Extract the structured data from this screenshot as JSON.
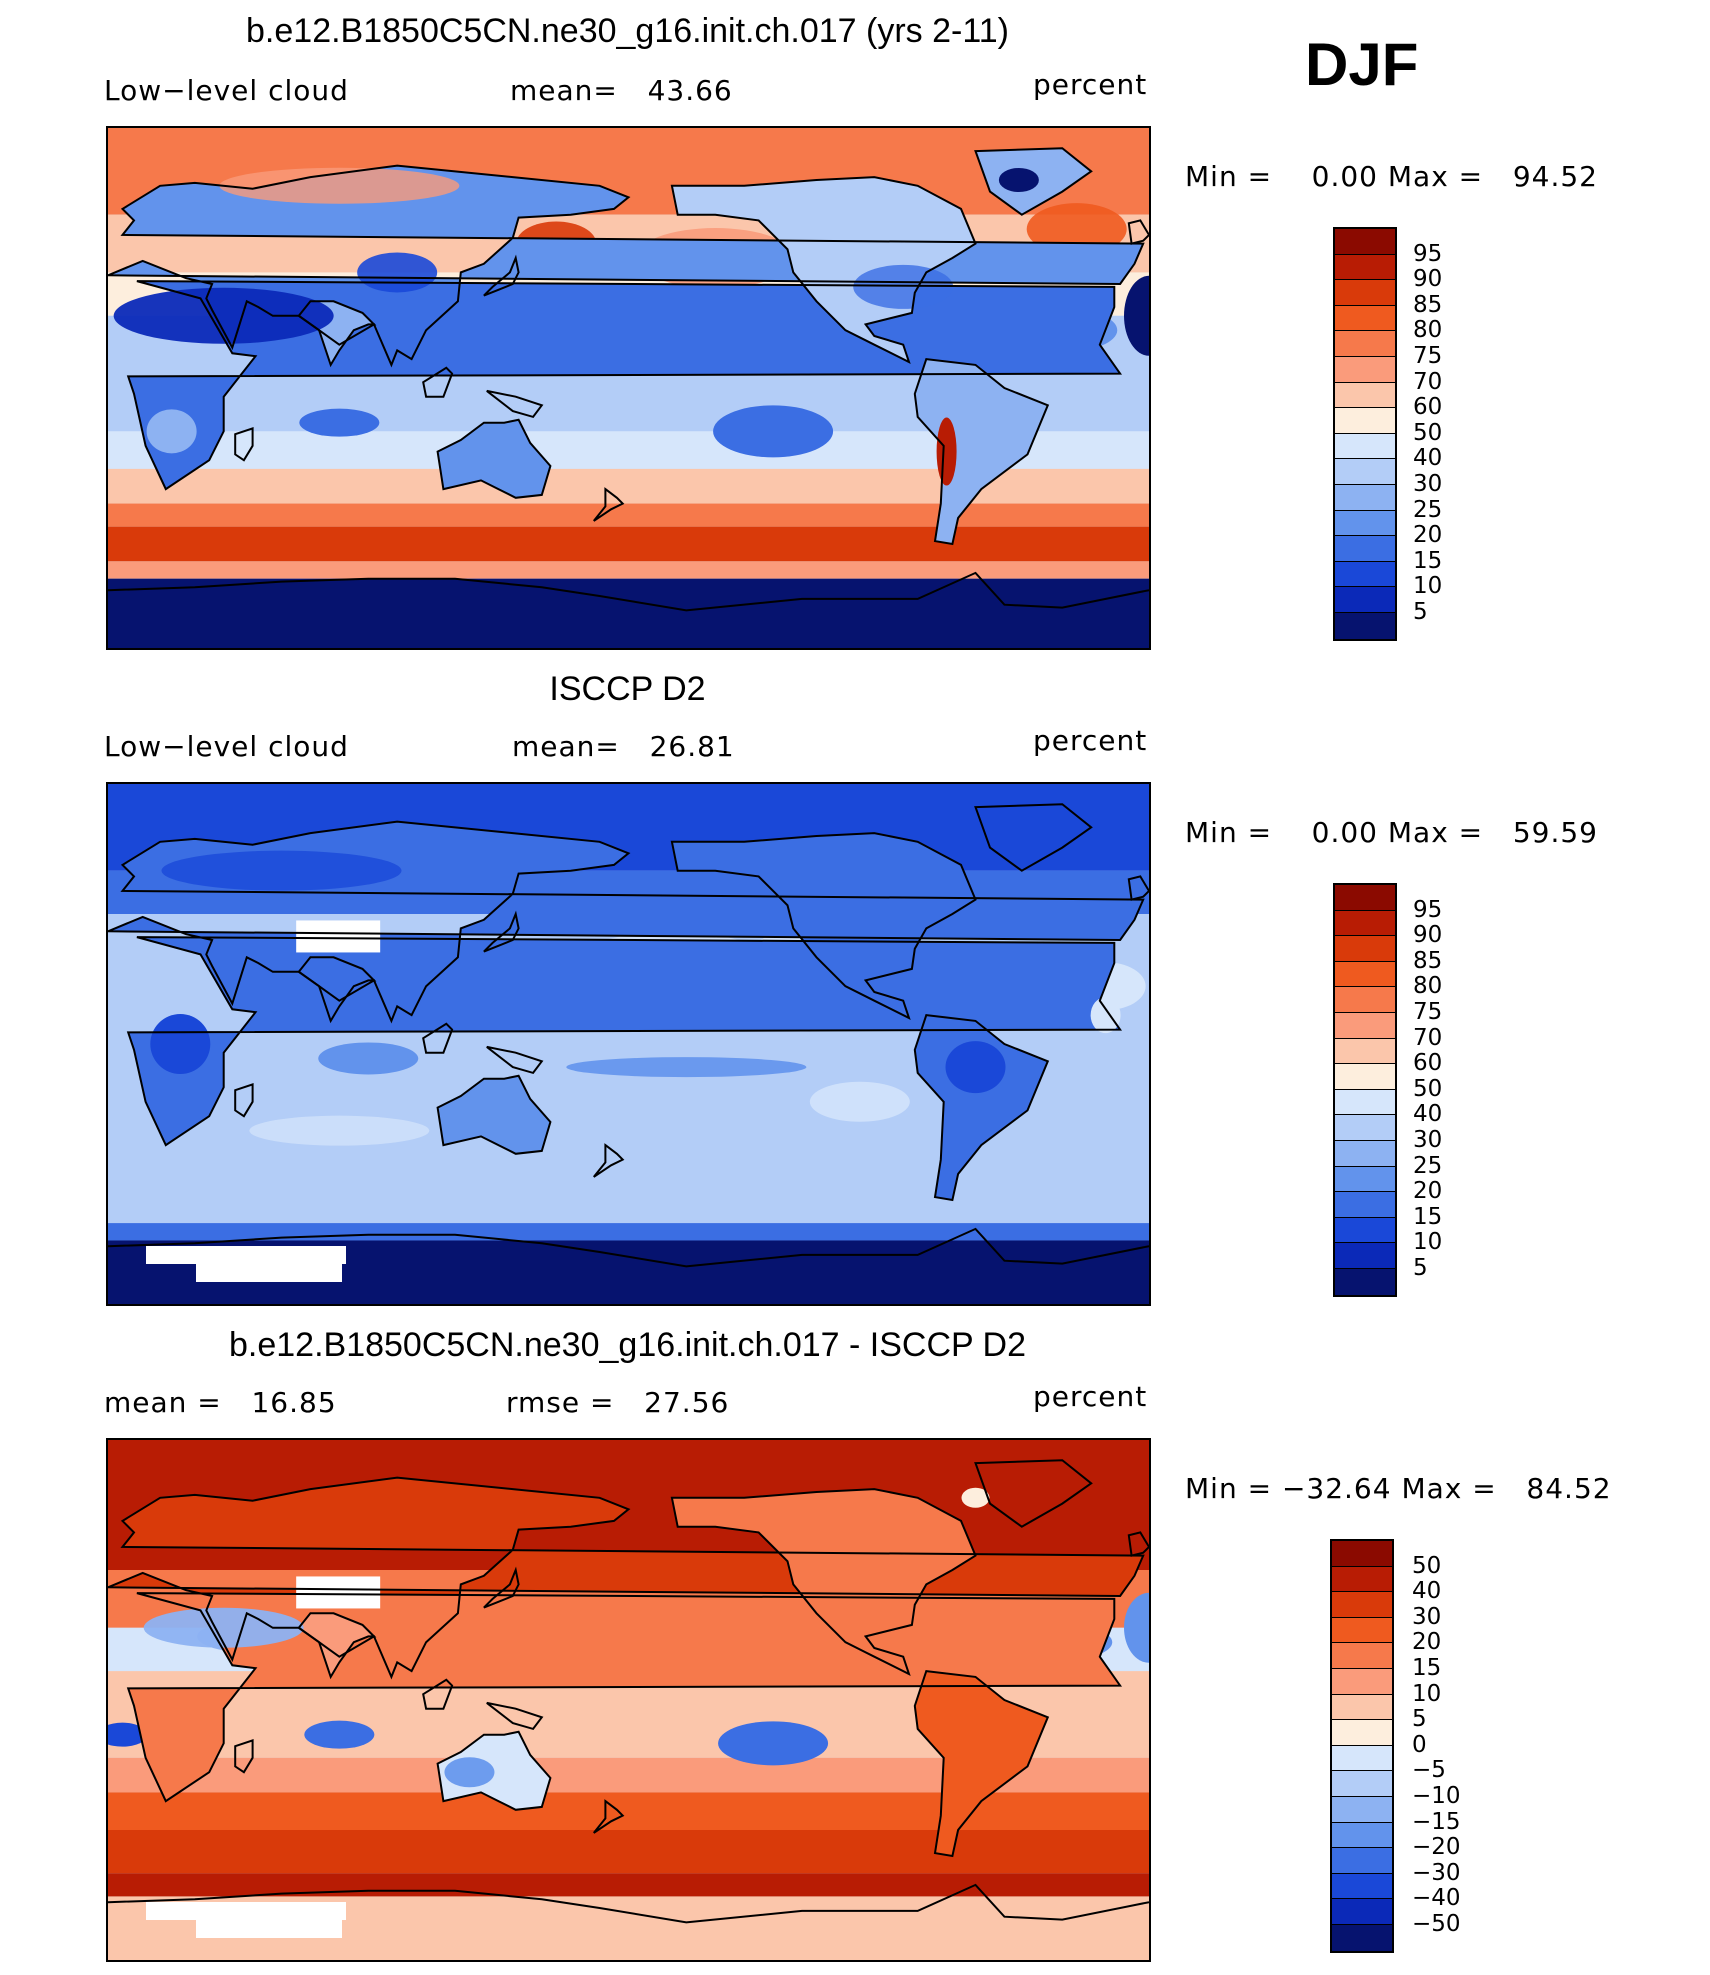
{
  "season": "DJF",
  "panels": [
    {
      "title": "b.e12.B1850C5CN.ne30_g16.init.ch.017 (yrs 2-11)",
      "left_label": "Low−level cloud",
      "center_label": "mean=   43.66",
      "right_label": "percent",
      "minmax": "Min =    0.00 Max =   94.52",
      "field_style": "model"
    },
    {
      "title": "ISCCP D2",
      "left_label": "Low−level cloud",
      "center_label": "mean=   26.81",
      "right_label": "percent",
      "minmax": "Min =    0.00 Max =   59.59",
      "field_style": "obs"
    },
    {
      "title": "b.e12.B1850C5CN.ne30_g16.init.ch.017 - ISCCP D2",
      "left_label": "mean =   16.85",
      "center_label": "rmse =   27.56",
      "right_label": "percent",
      "minmax": "Min = −32.64 Max =   84.52",
      "field_style": "diff"
    }
  ],
  "colorbars": {
    "abs": {
      "labels": [
        "95",
        "90",
        "85",
        "80",
        "75",
        "70",
        "60",
        "50",
        "40",
        "30",
        "25",
        "20",
        "15",
        "10",
        "5"
      ],
      "colors": [
        "#8b0a00",
        "#b81c04",
        "#d93a0a",
        "#ef5a1f",
        "#f6794b",
        "#fa9b7b",
        "#fbc6ab",
        "#fdeedd",
        "#d6e6fb",
        "#b3cdf7",
        "#8db2f2",
        "#6293ec",
        "#3b6ee3",
        "#1a48d8",
        "#0b29b8",
        "#06136f"
      ]
    },
    "diff": {
      "labels": [
        "50",
        "40",
        "30",
        "20",
        "15",
        "10",
        "5",
        "0",
        "−5",
        "−10",
        "−15",
        "−20",
        "−30",
        "−40",
        "−50"
      ],
      "colors": [
        "#8b0a00",
        "#b81c04",
        "#d93a0a",
        "#ef5a1f",
        "#f6794b",
        "#fa9b7b",
        "#fbc6ab",
        "#fdeedd",
        "#d6e6fb",
        "#b3cdf7",
        "#8db2f2",
        "#6293ec",
        "#3b6ee3",
        "#1a48d8",
        "#0b29b8",
        "#06136f"
      ]
    }
  }
}
